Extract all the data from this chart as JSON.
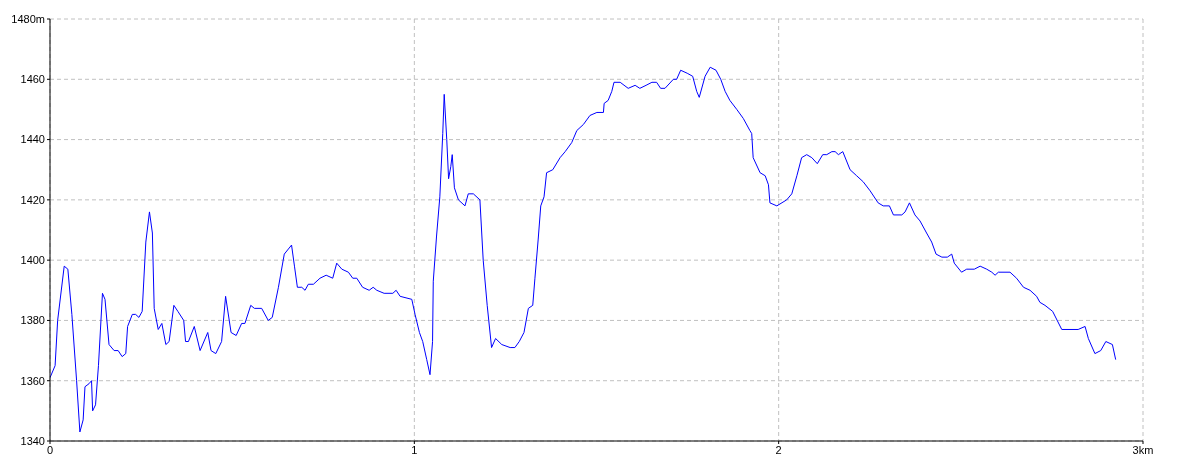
{
  "chart_data": {
    "type": "line",
    "x": [
      0,
      0.014,
      0.021,
      0.039,
      0.049,
      0.06,
      0.073,
      0.082,
      0.091,
      0.096,
      0.107,
      0.114,
      0.117,
      0.125,
      0.133,
      0.144,
      0.151,
      0.162,
      0.176,
      0.187,
      0.198,
      0.208,
      0.213,
      0.226,
      0.235,
      0.244,
      0.253,
      0.263,
      0.273,
      0.281,
      0.286,
      0.297,
      0.307,
      0.318,
      0.327,
      0.34,
      0.351,
      0.367,
      0.372,
      0.38,
      0.396,
      0.412,
      0.433,
      0.442,
      0.455,
      0.471,
      0.482,
      0.497,
      0.511,
      0.526,
      0.535,
      0.551,
      0.561,
      0.581,
      0.599,
      0.61,
      0.627,
      0.643,
      0.663,
      0.671,
      0.679,
      0.691,
      0.7,
      0.709,
      0.723,
      0.741,
      0.758,
      0.776,
      0.787,
      0.801,
      0.819,
      0.831,
      0.842,
      0.858,
      0.876,
      0.887,
      0.897,
      0.917,
      0.941,
      0.95,
      0.961,
      0.993,
      1.002,
      1.014,
      1.023,
      1.034,
      1.043,
      1.05,
      1.052,
      1.061,
      1.07,
      1.078,
      1.082,
      1.089,
      1.094,
      1.1,
      1.104,
      1.11,
      1.121,
      1.139,
      1.148,
      1.162,
      1.18,
      1.189,
      1.2,
      1.212,
      1.223,
      1.24,
      1.263,
      1.276,
      1.288,
      1.301,
      1.313,
      1.325,
      1.331,
      1.34,
      1.347,
      1.356,
      1.363,
      1.38,
      1.4,
      1.414,
      1.432,
      1.446,
      1.464,
      1.482,
      1.501,
      1.519,
      1.521,
      1.532,
      1.542,
      1.548,
      1.565,
      1.587,
      1.606,
      1.619,
      1.636,
      1.652,
      1.665,
      1.676,
      1.688,
      1.711,
      1.72,
      1.731,
      1.749,
      1.764,
      1.775,
      1.782,
      1.798,
      1.812,
      1.828,
      1.841,
      1.853,
      1.866,
      1.885,
      1.903,
      1.921,
      1.926,
      1.93,
      1.949,
      1.963,
      1.972,
      1.976,
      1.995,
      2.022,
      2.036,
      2.05,
      2.063,
      2.077,
      2.091,
      2.106,
      2.121,
      2.132,
      2.146,
      2.155,
      2.164,
      2.176,
      2.196,
      2.214,
      2.232,
      2.251,
      2.273,
      2.287,
      2.304,
      2.315,
      2.338,
      2.347,
      2.359,
      2.374,
      2.388,
      2.406,
      2.42,
      2.432,
      2.448,
      2.463,
      2.475,
      2.482,
      2.502,
      2.516,
      2.537,
      2.553,
      2.571,
      2.585,
      2.594,
      2.603,
      2.635,
      2.653,
      2.672,
      2.69,
      2.708,
      2.717,
      2.731,
      2.752,
      2.777,
      2.822,
      2.841,
      2.85,
      2.868,
      2.884,
      2.898,
      2.916,
      2.925
    ],
    "series": [
      {
        "color": "#0000ff",
        "values": [
          1361,
          1365,
          1380,
          1398,
          1397,
          1382,
          1360,
          1343,
          1347,
          1358,
          1359,
          1360,
          1350,
          1352,
          1365,
          1389,
          1387,
          1372,
          1370,
          1370,
          1368,
          1369,
          1378,
          1382,
          1382,
          1381,
          1383,
          1406,
          1416,
          1409,
          1384,
          1377,
          1379,
          1372,
          1373,
          1385,
          1383,
          1380,
          1373,
          1373,
          1378,
          1370,
          1376,
          1370,
          1369,
          1373,
          1388,
          1376,
          1375,
          1379,
          1379,
          1385,
          1384,
          1384,
          1380,
          1381,
          1391,
          1402,
          1405,
          1398,
          1391,
          1391,
          1390,
          1392,
          1392,
          1394,
          1395,
          1394,
          1399,
          1397,
          1396,
          1394,
          1394,
          1391,
          1390,
          1391,
          1390,
          1389,
          1389,
          1390,
          1388,
          1387,
          1382,
          1376,
          1373,
          1367,
          1362,
          1373,
          1393,
          1408,
          1421,
          1442,
          1455,
          1440,
          1427,
          1431,
          1435,
          1424,
          1420,
          1418,
          1422,
          1422,
          1420,
          1400,
          1385,
          1371,
          1374,
          1372,
          1371,
          1371,
          1373,
          1376,
          1384,
          1385,
          1394,
          1407,
          1418,
          1421,
          1429,
          1430,
          1434,
          1436,
          1439,
          1443,
          1445,
          1448,
          1449,
          1449,
          1452,
          1453,
          1456,
          1459,
          1459,
          1457,
          1458,
          1457,
          1458,
          1459,
          1459,
          1457,
          1457,
          1460,
          1460,
          1463,
          1462,
          1461,
          1456,
          1454,
          1461,
          1464,
          1463,
          1460,
          1456,
          1453,
          1450,
          1447,
          1443,
          1442,
          1434,
          1429,
          1428,
          1425,
          1419,
          1418,
          1420,
          1422,
          1428,
          1434,
          1435,
          1434,
          1432,
          1435,
          1435,
          1436,
          1436,
          1435,
          1436,
          1430,
          1428,
          1426,
          1423,
          1419,
          1418,
          1418,
          1415,
          1415,
          1416,
          1419,
          1415,
          1413,
          1409,
          1406,
          1402,
          1401,
          1401,
          1402,
          1399,
          1396,
          1397,
          1397,
          1398,
          1397,
          1396,
          1395,
          1396,
          1396,
          1394,
          1391,
          1390,
          1388,
          1386,
          1385,
          1383,
          1377,
          1377,
          1378,
          1374,
          1369,
          1370,
          1373,
          1372,
          1367
        ]
      }
    ],
    "xlim": [
      0,
      3
    ],
    "xticks": [
      0,
      1,
      2,
      {
        "value": 3,
        "label": "3km"
      }
    ],
    "ylim": [
      1340,
      1480
    ],
    "yticks": [
      1340,
      1360,
      1380,
      1400,
      1420,
      1440,
      1460,
      {
        "value": 1480,
        "label": "1480m"
      }
    ],
    "grid": true,
    "line_style": "solid",
    "marker": "none"
  }
}
